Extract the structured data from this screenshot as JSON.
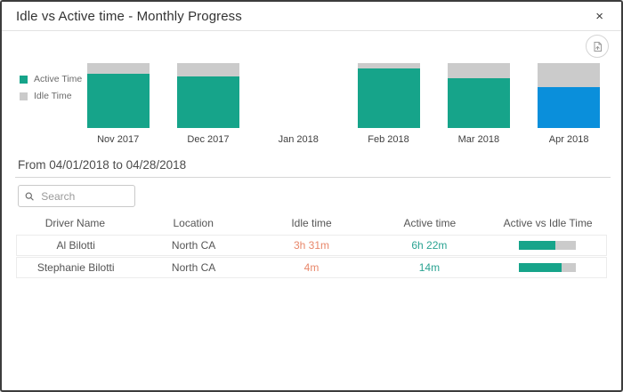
{
  "dialog": {
    "title": "Idle vs Active time - Monthly Progress",
    "close_label": "×"
  },
  "icons": {
    "close": "close-icon",
    "export": "export-report-icon",
    "search": "search-icon"
  },
  "colors": {
    "active_bar": "#16a48a",
    "idle_bar": "#cbcbcb",
    "selected_bar": "#0a8fdb",
    "idle_text": "#e8876a",
    "active_text": "#2aa392"
  },
  "chart_data": {
    "type": "bar",
    "stacked": true,
    "categories": [
      "Nov 2017",
      "Dec 2017",
      "Jan 2018",
      "Feb 2018",
      "Mar 2018",
      "Apr 2018"
    ],
    "series": [
      {
        "name": "Active Time",
        "values": [
          83,
          79,
          0,
          92,
          77,
          63
        ]
      },
      {
        "name": "Idle Time",
        "values": [
          17,
          21,
          0,
          8,
          23,
          37
        ]
      }
    ],
    "unit": "percent of full bar height (estimated from pixels)",
    "highlighted_category": "Apr 2018",
    "legend_position": "left",
    "grid": false,
    "note": "Jan 2018 has no bar; Apr 2018 active segment shown in blue (selected month)"
  },
  "period_heading": "From 04/01/2018 to 04/28/2018",
  "search": {
    "placeholder": "Search"
  },
  "table": {
    "columns": [
      "Driver Name",
      "Location",
      "Idle time",
      "Active time",
      "Active vs Idle Time"
    ],
    "rows": [
      {
        "driver": "Al Bilotti",
        "location": "North CA",
        "idle": "3h 31m",
        "active": "6h 22m",
        "active_pct": 65
      },
      {
        "driver": "Stephanie Bilotti",
        "location": "North CA",
        "idle": "4m",
        "active": "14m",
        "active_pct": 76
      }
    ]
  }
}
